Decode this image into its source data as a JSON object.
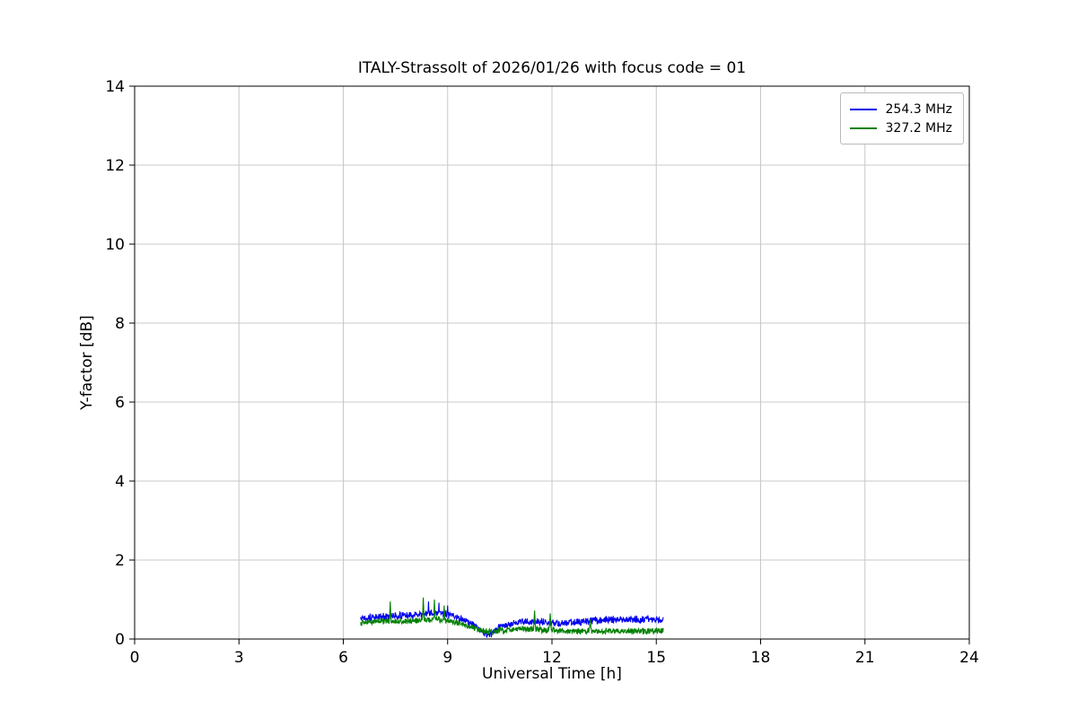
{
  "chart_data": {
    "type": "line",
    "title": "ITALY-Strassolt of 2026/01/26 with focus code = 01",
    "xlabel": "Universal Time [h]",
    "ylabel": "Y-factor [dB]",
    "xlim": [
      0,
      24
    ],
    "ylim": [
      0,
      14
    ],
    "xticks": [
      0,
      3,
      6,
      9,
      12,
      15,
      18,
      21,
      24
    ],
    "yticks": [
      0,
      2,
      4,
      6,
      8,
      10,
      12,
      14
    ],
    "grid": true,
    "grid_color": "#c8c8c8",
    "axis_color": "#000000",
    "legend_position": "upper right",
    "series": [
      {
        "name": "254.3 MHz",
        "color": "#0000ee",
        "x_start": 6.5,
        "x_end": 15.2,
        "envelope_x": [
          6.5,
          7.0,
          7.5,
          8.0,
          8.3,
          8.6,
          9.0,
          9.3,
          9.6,
          10.0,
          10.2,
          10.5,
          11.0,
          11.5,
          12.0,
          12.5,
          13.0,
          13.5,
          14.0,
          14.5,
          15.0,
          15.2
        ],
        "envelope_mean": [
          0.55,
          0.55,
          0.58,
          0.6,
          0.63,
          0.68,
          0.62,
          0.55,
          0.42,
          0.18,
          0.1,
          0.3,
          0.42,
          0.45,
          0.4,
          0.42,
          0.45,
          0.48,
          0.5,
          0.5,
          0.5,
          0.45
        ],
        "noise_amplitude": 0.11,
        "spikes": [
          {
            "x": 8.45,
            "y": 0.95
          },
          {
            "x": 8.75,
            "y": 0.92
          },
          {
            "x": 9.0,
            "y": 0.85
          }
        ]
      },
      {
        "name": "327.2 MHz",
        "color": "#008000",
        "x_start": 6.5,
        "x_end": 15.2,
        "envelope_x": [
          6.5,
          7.0,
          7.5,
          8.0,
          8.3,
          8.6,
          9.0,
          9.3,
          9.6,
          10.0,
          10.2,
          10.5,
          11.0,
          11.5,
          12.0,
          12.5,
          13.0,
          13.5,
          14.0,
          14.5,
          15.0,
          15.2
        ],
        "envelope_mean": [
          0.42,
          0.45,
          0.45,
          0.46,
          0.48,
          0.5,
          0.46,
          0.4,
          0.32,
          0.22,
          0.18,
          0.2,
          0.25,
          0.25,
          0.22,
          0.2,
          0.2,
          0.2,
          0.2,
          0.2,
          0.2,
          0.2
        ],
        "noise_amplitude": 0.09,
        "spikes": [
          {
            "x": 7.35,
            "y": 0.95
          },
          {
            "x": 8.3,
            "y": 1.05
          },
          {
            "x": 8.62,
            "y": 1.0
          },
          {
            "x": 8.9,
            "y": 0.85
          },
          {
            "x": 11.5,
            "y": 0.72
          },
          {
            "x": 11.95,
            "y": 0.65
          },
          {
            "x": 13.1,
            "y": 0.5
          }
        ]
      }
    ]
  }
}
